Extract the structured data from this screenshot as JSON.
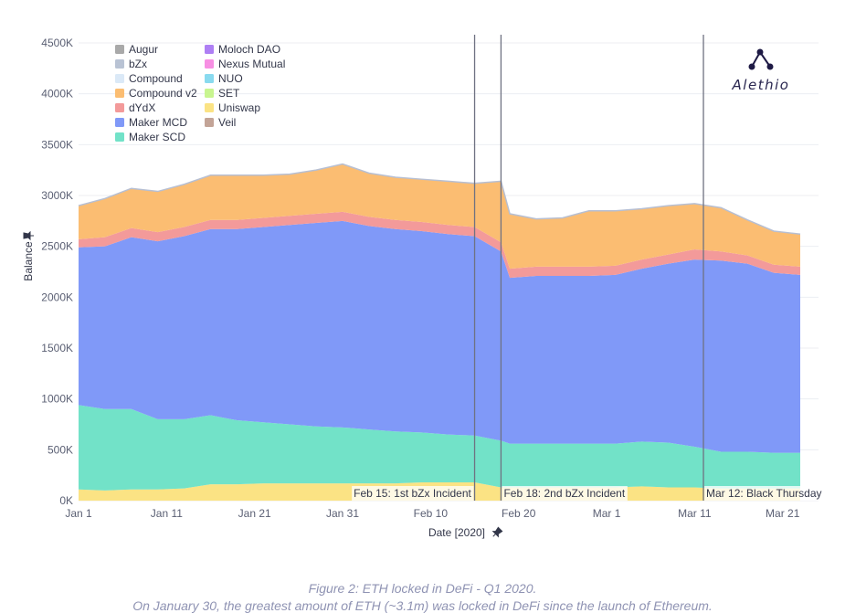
{
  "logo": {
    "text": "Alethio"
  },
  "caption": {
    "title": "Figure 2: ETH locked in DeFi - Q1 2020.",
    "subtitle": "On January 30, the greatest amount of ETH (~3.1m) was locked in DeFi since the launch of Ethereum."
  },
  "chart_data": {
    "type": "area",
    "stacked": true,
    "xlabel": "Date [2020]",
    "ylabel": "Balance",
    "x_ticks": [
      "Jan 1",
      "Jan 11",
      "Jan 21",
      "Jan 31",
      "Feb 10",
      "Feb 20",
      "Mar 1",
      "Mar 11",
      "Mar 21"
    ],
    "y_ticks": [
      "0K",
      "500K",
      "1000K",
      "1500K",
      "2000K",
      "2500K",
      "3000K",
      "3500K",
      "4000K",
      "4500K"
    ],
    "ylim": [
      0,
      4500000
    ],
    "grid": true,
    "legend_position": "top-left",
    "x": [
      "2020-01-01",
      "2020-01-04",
      "2020-01-07",
      "2020-01-10",
      "2020-01-13",
      "2020-01-16",
      "2020-01-19",
      "2020-01-22",
      "2020-01-25",
      "2020-01-28",
      "2020-01-31",
      "2020-02-03",
      "2020-02-06",
      "2020-02-09",
      "2020-02-12",
      "2020-02-15",
      "2020-02-18",
      "2020-02-19",
      "2020-02-22",
      "2020-02-25",
      "2020-02-28",
      "2020-03-02",
      "2020-03-05",
      "2020-03-08",
      "2020-03-11",
      "2020-03-14",
      "2020-03-17",
      "2020-03-20",
      "2020-03-23"
    ],
    "series": [
      {
        "name": "Augur",
        "color": "#a9a9a9",
        "values": [
          0,
          0,
          0,
          0,
          0,
          0,
          0,
          0,
          0,
          0,
          0,
          0,
          0,
          0,
          0,
          0,
          0,
          0,
          0,
          0,
          0,
          0,
          0,
          0,
          0,
          0,
          0,
          0,
          0
        ]
      },
      {
        "name": "bZx",
        "color": "#b9c3d4",
        "values": [
          0,
          0,
          0,
          0,
          0,
          0,
          0,
          0,
          0,
          0,
          0,
          0,
          0,
          0,
          0,
          0,
          0,
          0,
          0,
          0,
          0,
          0,
          0,
          0,
          0,
          0,
          0,
          0,
          0
        ]
      },
      {
        "name": "Compound",
        "color": "#dbe9f7",
        "values": [
          0,
          0,
          0,
          0,
          0,
          0,
          0,
          0,
          0,
          0,
          0,
          0,
          0,
          0,
          0,
          0,
          0,
          0,
          0,
          0,
          0,
          0,
          0,
          0,
          0,
          0,
          0,
          0,
          0
        ]
      },
      {
        "name": "Compound v2",
        "color": "#fbbd72",
        "values": [
          330000,
          380000,
          390000,
          400000,
          420000,
          440000,
          440000,
          420000,
          410000,
          430000,
          470000,
          430000,
          420000,
          420000,
          430000,
          430000,
          600000,
          540000,
          470000,
          480000,
          550000,
          540000,
          500000,
          480000,
          450000,
          430000,
          350000,
          330000,
          320000
        ]
      },
      {
        "name": "dYdX",
        "color": "#f39a9a",
        "values": [
          80000,
          90000,
          90000,
          90000,
          90000,
          90000,
          90000,
          90000,
          90000,
          90000,
          90000,
          90000,
          90000,
          90000,
          90000,
          90000,
          90000,
          90000,
          90000,
          90000,
          90000,
          90000,
          90000,
          90000,
          100000,
          90000,
          80000,
          80000,
          80000
        ]
      },
      {
        "name": "Maker MCD",
        "color": "#8099f8",
        "values": [
          1550000,
          1600000,
          1690000,
          1750000,
          1800000,
          1830000,
          1880000,
          1920000,
          1960000,
          2000000,
          2030000,
          2000000,
          1990000,
          1980000,
          1970000,
          1960000,
          1860000,
          1630000,
          1650000,
          1650000,
          1650000,
          1660000,
          1700000,
          1760000,
          1840000,
          1880000,
          1850000,
          1770000,
          1750000
        ]
      },
      {
        "name": "Maker SCD",
        "color": "#72e2c8",
        "values": [
          830000,
          800000,
          790000,
          690000,
          680000,
          680000,
          630000,
          600000,
          580000,
          560000,
          550000,
          530000,
          510000,
          490000,
          470000,
          460000,
          460000,
          430000,
          430000,
          430000,
          430000,
          430000,
          440000,
          440000,
          400000,
          360000,
          360000,
          350000,
          350000
        ]
      },
      {
        "name": "Moloch DAO",
        "color": "#ae7ff4",
        "values": [
          0,
          0,
          0,
          0,
          0,
          0,
          0,
          0,
          0,
          0,
          0,
          0,
          0,
          0,
          0,
          0,
          0,
          0,
          0,
          0,
          0,
          0,
          0,
          0,
          0,
          0,
          0,
          0,
          0
        ]
      },
      {
        "name": "Nexus Mutual",
        "color": "#f78fe3",
        "values": [
          0,
          0,
          0,
          0,
          0,
          0,
          0,
          0,
          0,
          0,
          0,
          0,
          0,
          0,
          0,
          0,
          0,
          0,
          0,
          0,
          0,
          0,
          0,
          0,
          0,
          0,
          0,
          0,
          0
        ]
      },
      {
        "name": "NUO",
        "color": "#89daef",
        "values": [
          0,
          0,
          0,
          0,
          0,
          0,
          0,
          0,
          0,
          0,
          0,
          0,
          0,
          0,
          0,
          0,
          0,
          0,
          0,
          0,
          0,
          0,
          0,
          0,
          0,
          0,
          0,
          0,
          0
        ]
      },
      {
        "name": "SET",
        "color": "#c8f590",
        "values": [
          0,
          0,
          0,
          0,
          0,
          0,
          0,
          0,
          0,
          0,
          0,
          0,
          0,
          0,
          0,
          0,
          0,
          0,
          0,
          0,
          0,
          0,
          0,
          0,
          0,
          0,
          0,
          0,
          0
        ]
      },
      {
        "name": "Uniswap",
        "color": "#fbe384",
        "values": [
          110000,
          100000,
          110000,
          110000,
          120000,
          160000,
          160000,
          170000,
          170000,
          170000,
          170000,
          170000,
          170000,
          180000,
          180000,
          180000,
          130000,
          130000,
          130000,
          130000,
          130000,
          130000,
          140000,
          130000,
          130000,
          120000,
          120000,
          120000,
          120000
        ]
      },
      {
        "name": "Veil",
        "color": "#c3a497",
        "values": [
          0,
          0,
          0,
          0,
          0,
          0,
          0,
          0,
          0,
          0,
          0,
          0,
          0,
          0,
          0,
          0,
          0,
          0,
          0,
          0,
          0,
          0,
          0,
          0,
          0,
          0,
          0,
          0,
          0
        ]
      }
    ],
    "stack_order": [
      "Uniswap",
      "Maker SCD",
      "Maker MCD",
      "dYdX",
      "Compound v2"
    ],
    "annotations": [
      {
        "x": "2020-02-15",
        "label": "Feb 15: 1st bZx Incident"
      },
      {
        "x": "2020-02-18",
        "label": "Feb 18: 2nd bZx Incident"
      },
      {
        "x": "2020-03-12",
        "label": "Mar 12: Black Thursday"
      }
    ]
  }
}
